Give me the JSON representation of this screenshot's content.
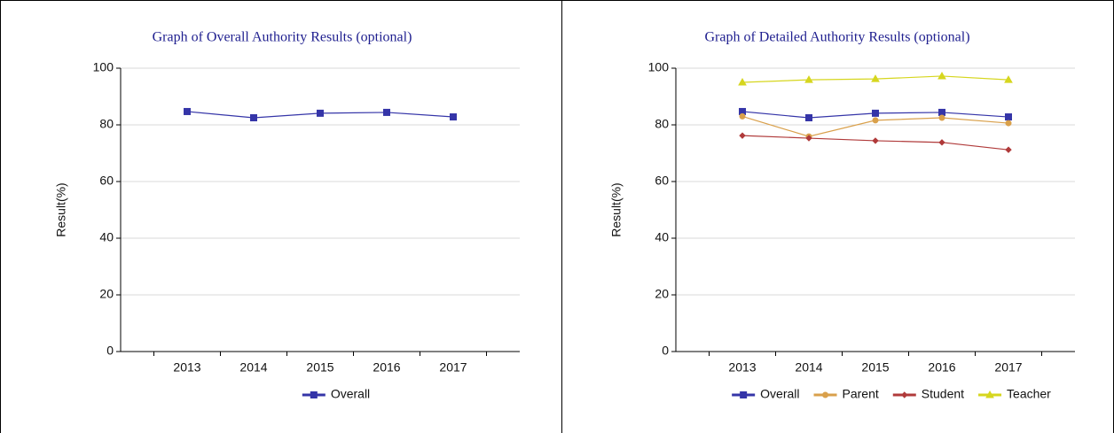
{
  "chart_data": [
    {
      "type": "line",
      "title": "Graph of Overall Authority Results (optional)",
      "y_label": "Result(%)",
      "categories": [
        "2013",
        "2014",
        "2015",
        "2016",
        "2017"
      ],
      "series": [
        {
          "name": "Overall",
          "color": "#3535a8",
          "marker": "square",
          "values": [
            84.7,
            82.5,
            84.1,
            84.4,
            82.8
          ]
        }
      ],
      "ylim": [
        0,
        100
      ],
      "yticks": [
        0,
        20,
        40,
        60,
        80,
        100
      ],
      "grid": true,
      "legend": "bottom"
    },
    {
      "type": "line",
      "title": "Graph of Detailed Authority Results (optional)",
      "y_label": "Result(%)",
      "categories": [
        "2013",
        "2014",
        "2015",
        "2016",
        "2017"
      ],
      "series": [
        {
          "name": "Overall",
          "color": "#3535a8",
          "marker": "square",
          "values": [
            84.7,
            82.5,
            84.1,
            84.4,
            82.8
          ]
        },
        {
          "name": "Parent",
          "color": "#d9a04b",
          "marker": "circle",
          "values": [
            83.0,
            75.9,
            81.6,
            82.5,
            80.6
          ]
        },
        {
          "name": "Student",
          "color": "#b03a3a",
          "marker": "diamond",
          "values": [
            76.2,
            75.3,
            74.4,
            73.8,
            71.2
          ]
        },
        {
          "name": "Teacher",
          "color": "#d6d61e",
          "marker": "triangle",
          "values": [
            95.0,
            95.9,
            96.2,
            97.2,
            95.9
          ]
        }
      ],
      "ylim": [
        0,
        100
      ],
      "yticks": [
        0,
        20,
        40,
        60,
        80,
        100
      ],
      "grid": true,
      "legend": "bottom"
    }
  ]
}
